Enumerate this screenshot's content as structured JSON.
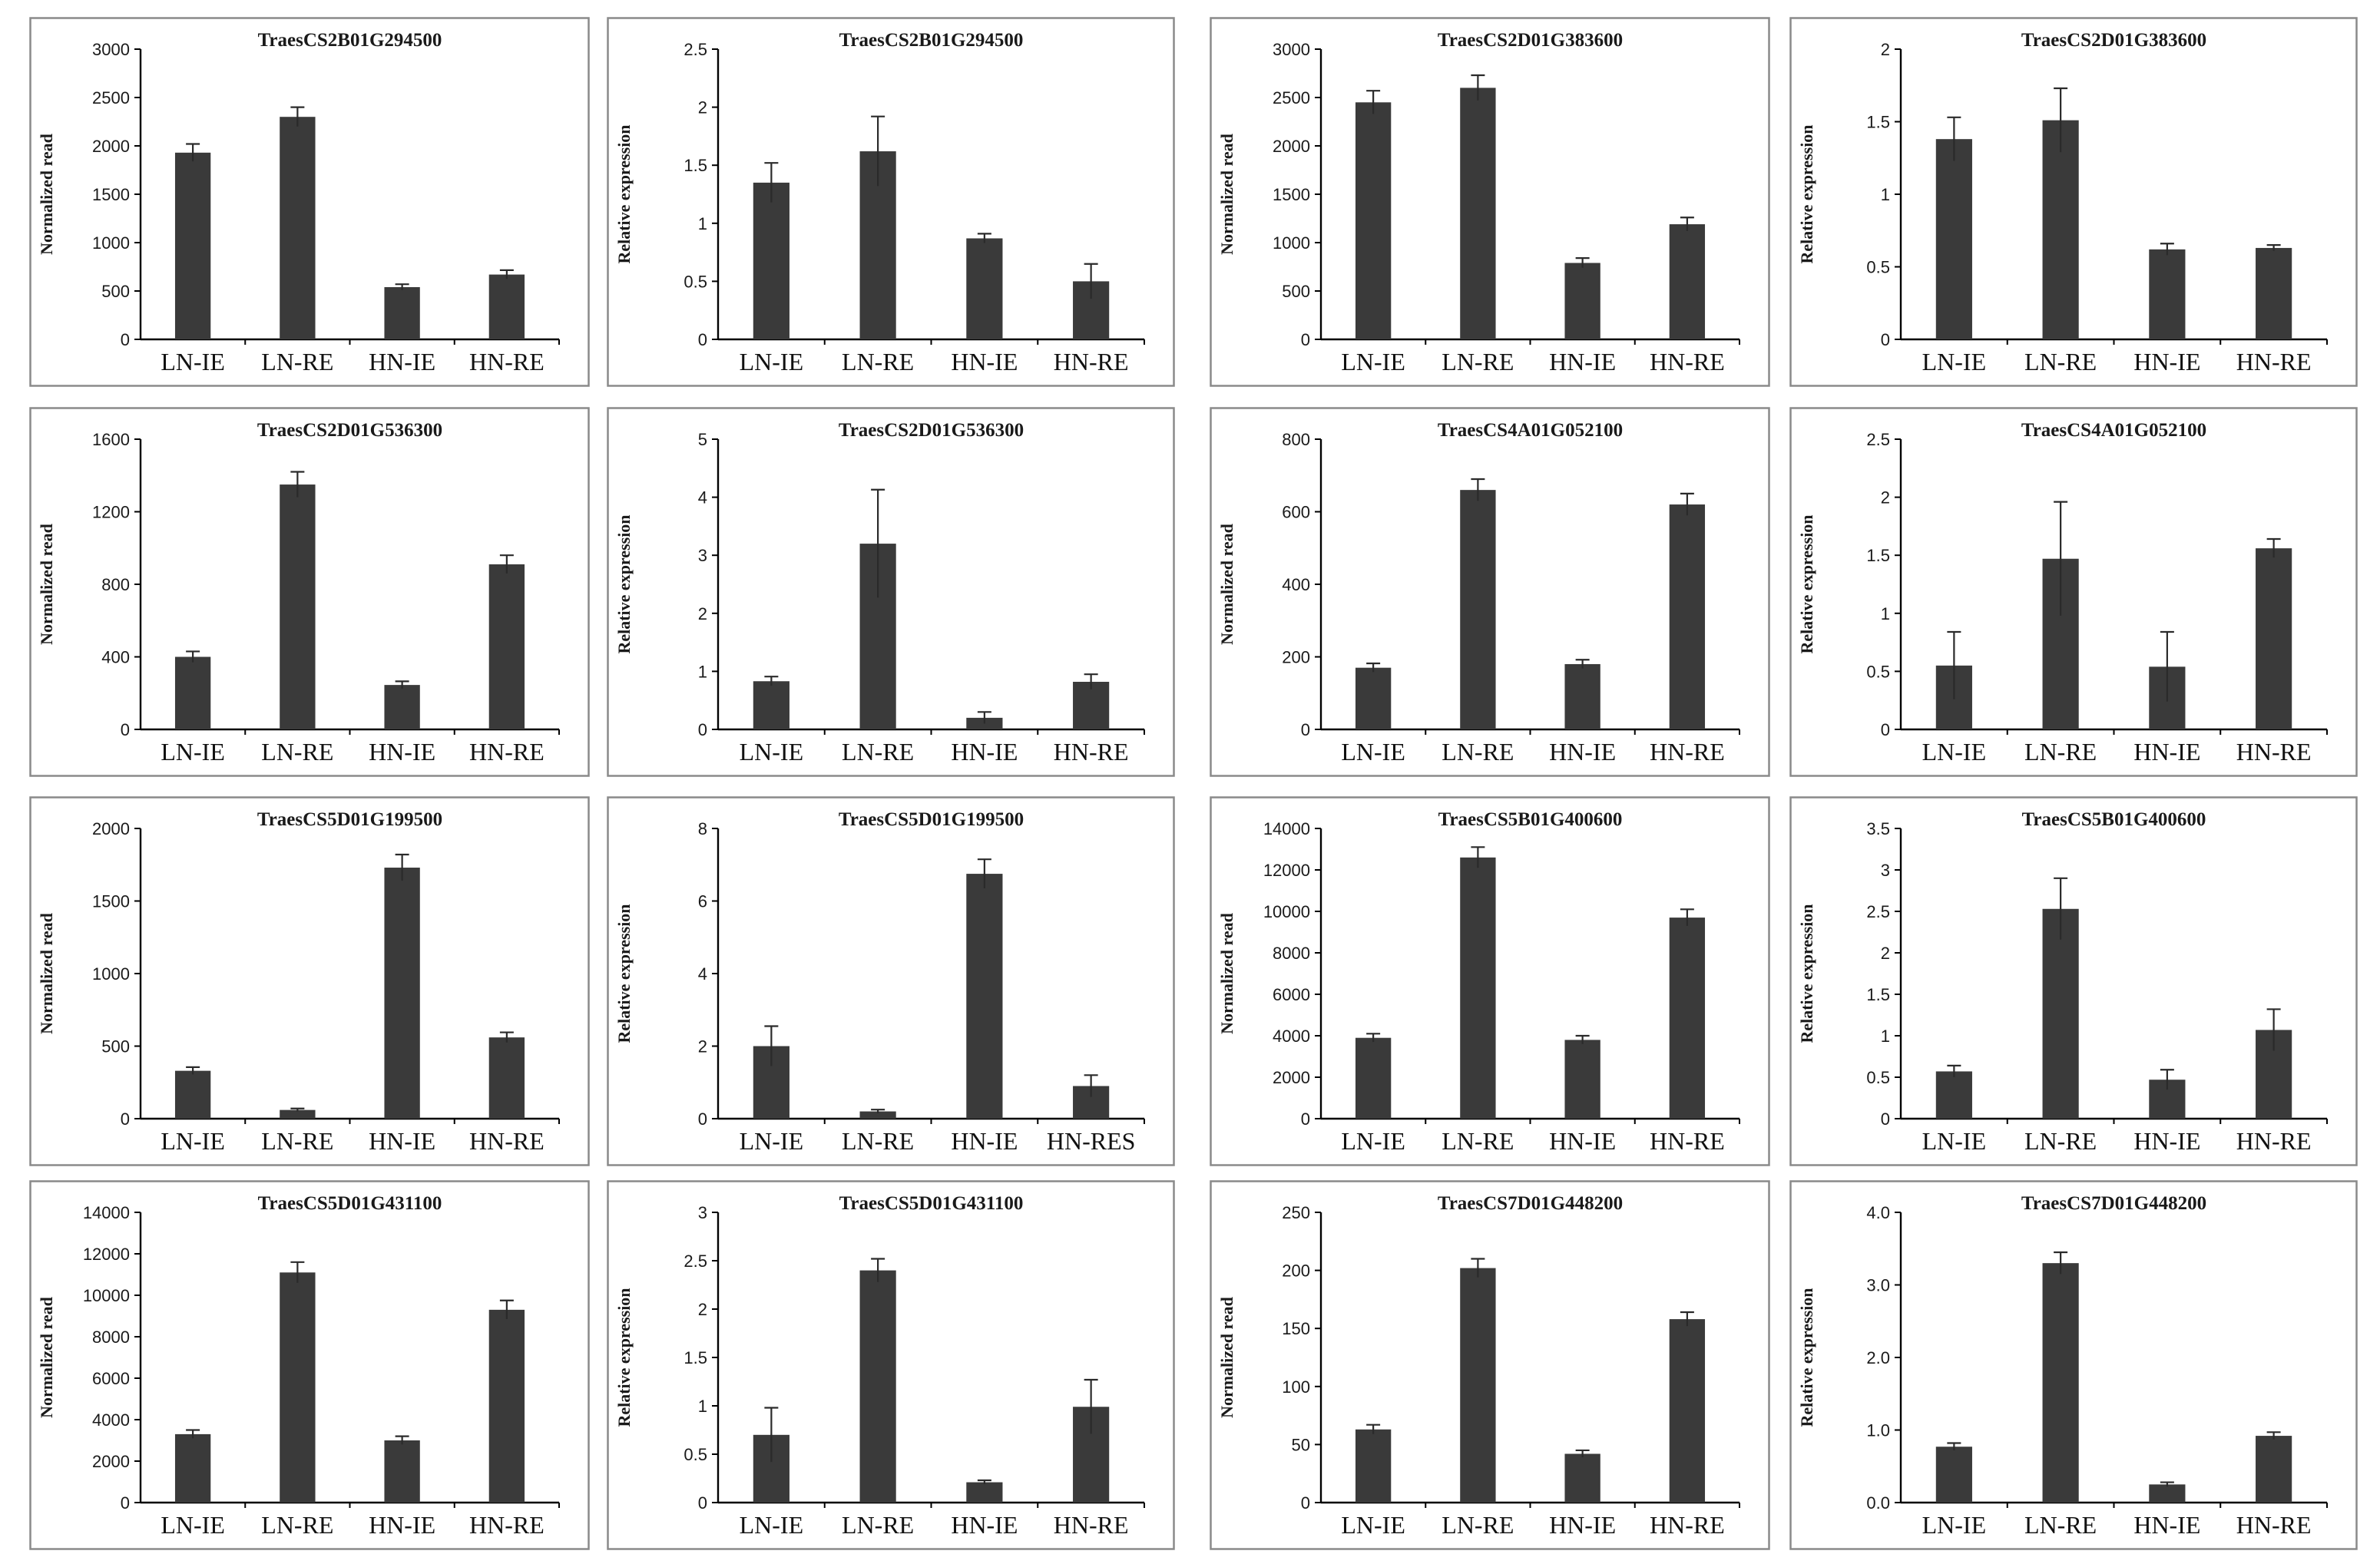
{
  "figure": {
    "colors": {
      "bar": "#3a3a3a",
      "frame": "#8a8a8a",
      "axis": "#000000",
      "background": "#ffffff"
    }
  },
  "chart_data": [
    {
      "type": "bar",
      "title": "TraesCS2B01G294500",
      "ylabel": "Normalized read",
      "categories": [
        "LN-IE",
        "LN-RE",
        "HN-IE",
        "HN-RE"
      ],
      "values": [
        1930,
        2300,
        540,
        670
      ],
      "errors": [
        90,
        100,
        30,
        45
      ],
      "ylim": [
        0,
        3000
      ],
      "yticks": [
        "0",
        "500",
        "1000",
        "1500",
        "2000",
        "2500",
        "3000"
      ]
    },
    {
      "type": "bar",
      "title": "TraesCS2B01G294500",
      "ylabel": "Relative expression",
      "categories": [
        "LN-IE",
        "LN-RE",
        "HN-IE",
        "HN-RE"
      ],
      "values": [
        1.35,
        1.62,
        0.87,
        0.5
      ],
      "errors": [
        0.17,
        0.3,
        0.04,
        0.15
      ],
      "ylim": [
        0,
        2.5
      ],
      "yticks": [
        "0",
        "0.5",
        "1",
        "1.5",
        "2",
        "2.5"
      ]
    },
    {
      "type": "bar",
      "title": "TraesCS2D01G383600",
      "ylabel": "Normalized read",
      "categories": [
        "LN-IE",
        "LN-RE",
        "HN-IE",
        "HN-RE"
      ],
      "values": [
        2450,
        2600,
        790,
        1190
      ],
      "errors": [
        120,
        130,
        50,
        70
      ],
      "ylim": [
        0,
        3000
      ],
      "yticks": [
        "0",
        "500",
        "1000",
        "1500",
        "2000",
        "2500",
        "3000"
      ]
    },
    {
      "type": "bar",
      "title": "TraesCS2D01G383600",
      "ylabel": "Relative expression",
      "categories": [
        "LN-IE",
        "LN-RE",
        "HN-IE",
        "HN-RE"
      ],
      "values": [
        1.38,
        1.51,
        0.62,
        0.63
      ],
      "errors": [
        0.15,
        0.22,
        0.04,
        0.02
      ],
      "ylim": [
        0,
        2
      ],
      "yticks": [
        "0",
        "0.5",
        "1",
        "1.5",
        "2"
      ]
    },
    {
      "type": "bar",
      "title": "TraesCS2D01G536300",
      "ylabel": "Normalized read",
      "categories": [
        "LN-IE",
        "LN-RE",
        "HN-IE",
        "HN-RE"
      ],
      "values": [
        400,
        1350,
        245,
        910
      ],
      "errors": [
        30,
        70,
        20,
        50
      ],
      "ylim": [
        0,
        1600
      ],
      "yticks": [
        "0",
        "400",
        "800",
        "1200",
        "1600"
      ]
    },
    {
      "type": "bar",
      "title": "TraesCS2D01G536300",
      "ylabel": "Relative expression",
      "categories": [
        "LN-IE",
        "LN-RE",
        "HN-IE",
        "HN-RE"
      ],
      "values": [
        0.83,
        3.2,
        0.2,
        0.82
      ],
      "errors": [
        0.08,
        0.93,
        0.1,
        0.13
      ],
      "ylim": [
        0,
        5
      ],
      "yticks": [
        "0",
        "1",
        "2",
        "3",
        "4",
        "5"
      ]
    },
    {
      "type": "bar",
      "title": "TraesCS4A01G052100",
      "ylabel": "Normalized read",
      "categories": [
        "LN-IE",
        "LN-RE",
        "HN-IE",
        "HN-RE"
      ],
      "values": [
        170,
        660,
        180,
        620
      ],
      "errors": [
        12,
        30,
        12,
        30
      ],
      "ylim": [
        0,
        800
      ],
      "yticks": [
        "0",
        "200",
        "400",
        "600",
        "800"
      ]
    },
    {
      "type": "bar",
      "title": "TraesCS4A01G052100",
      "ylabel": "Relative expression",
      "categories": [
        "LN-IE",
        "LN-RE",
        "HN-IE",
        "HN-RE"
      ],
      "values": [
        0.55,
        1.47,
        0.54,
        1.56
      ],
      "errors": [
        0.29,
        0.49,
        0.3,
        0.08
      ],
      "ylim": [
        0,
        2.5
      ],
      "yticks": [
        "0",
        "0.5",
        "1",
        "1.5",
        "2",
        "2.5"
      ]
    },
    {
      "type": "bar",
      "title": "TraesCS5D01G199500",
      "ylabel": "Normalized read",
      "categories": [
        "LN-IE",
        "LN-RE",
        "HN-IE",
        "HN-RE"
      ],
      "values": [
        330,
        60,
        1730,
        560
      ],
      "errors": [
        25,
        10,
        90,
        35
      ],
      "ylim": [
        0,
        2000
      ],
      "yticks": [
        "0",
        "500",
        "1000",
        "1500",
        "2000"
      ]
    },
    {
      "type": "bar",
      "title": "TraesCS5D01G199500",
      "ylabel": "Relative expression",
      "categories": [
        "LN-IE",
        "LN-RE",
        "HN-IE",
        "HN-RES"
      ],
      "values": [
        2.0,
        0.2,
        6.75,
        0.9
      ],
      "errors": [
        0.55,
        0.05,
        0.4,
        0.3
      ],
      "ylim": [
        0,
        8
      ],
      "yticks": [
        "0",
        "2",
        "4",
        "6",
        "8"
      ]
    },
    {
      "type": "bar",
      "title": "TraesCS5B01G400600",
      "ylabel": "Normalized read",
      "categories": [
        "LN-IE",
        "LN-RE",
        "HN-IE",
        "HN-RE"
      ],
      "values": [
        3900,
        12600,
        3800,
        9700
      ],
      "errors": [
        200,
        500,
        200,
        400
      ],
      "ylim": [
        0,
        14000
      ],
      "yticks": [
        "0",
        "2000",
        "4000",
        "6000",
        "8000",
        "10000",
        "12000",
        "14000"
      ]
    },
    {
      "type": "bar",
      "title": "TraesCS5B01G400600",
      "ylabel": "Relative expression",
      "categories": [
        "LN-IE",
        "LN-RE",
        "HN-IE",
        "HN-RE"
      ],
      "values": [
        0.57,
        2.53,
        0.47,
        1.07
      ],
      "errors": [
        0.07,
        0.37,
        0.12,
        0.25
      ],
      "ylim": [
        0,
        3.5
      ],
      "yticks": [
        "0",
        "0.5",
        "1",
        "1.5",
        "2",
        "2.5",
        "3",
        "3.5"
      ]
    },
    {
      "type": "bar",
      "title": "TraesCS5D01G431100",
      "ylabel": "Normalized read",
      "categories": [
        "LN-IE",
        "LN-RE",
        "HN-IE",
        "HN-RE"
      ],
      "values": [
        3300,
        11100,
        3000,
        9300
      ],
      "errors": [
        200,
        500,
        200,
        450
      ],
      "ylim": [
        0,
        14000
      ],
      "yticks": [
        "0",
        "2000",
        "4000",
        "6000",
        "8000",
        "10000",
        "12000",
        "14000"
      ]
    },
    {
      "type": "bar",
      "title": "TraesCS5D01G431100",
      "ylabel": "Relative expression",
      "categories": [
        "LN-IE",
        "LN-RE",
        "HN-IE",
        "HN-RE"
      ],
      "values": [
        0.7,
        2.4,
        0.21,
        0.99
      ],
      "errors": [
        0.28,
        0.12,
        0.02,
        0.28
      ],
      "ylim": [
        0,
        3
      ],
      "yticks": [
        "0",
        "0.5",
        "1",
        "1.5",
        "2",
        "2.5",
        "3"
      ]
    },
    {
      "type": "bar",
      "title": "TraesCS7D01G448200",
      "ylabel": "Normalized read",
      "categories": [
        "LN-IE",
        "LN-RE",
        "HN-IE",
        "HN-RE"
      ],
      "values": [
        63,
        202,
        42,
        158
      ],
      "errors": [
        4,
        8,
        3,
        6
      ],
      "ylim": [
        0,
        250
      ],
      "yticks": [
        "0",
        "50",
        "100",
        "150",
        "200",
        "250"
      ]
    },
    {
      "type": "bar",
      "title": "TraesCS7D01G448200",
      "ylabel": "Relative expression",
      "categories": [
        "LN-IE",
        "LN-RE",
        "HN-IE",
        "HN-RE"
      ],
      "values": [
        0.77,
        3.3,
        0.25,
        0.92
      ],
      "errors": [
        0.05,
        0.15,
        0.03,
        0.05
      ],
      "ylim": [
        0,
        4
      ],
      "yticks": [
        "0.0",
        "1.0",
        "2.0",
        "3.0",
        "4.0"
      ]
    }
  ]
}
